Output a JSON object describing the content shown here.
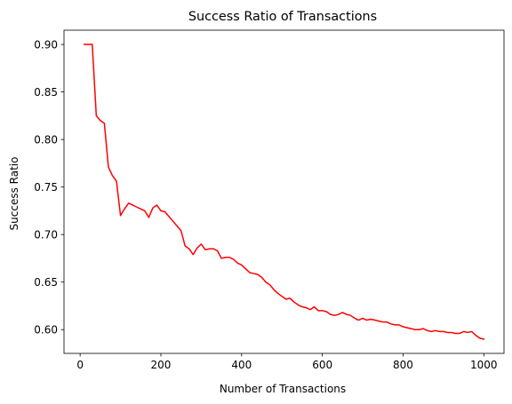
{
  "chart_data": {
    "type": "line",
    "title": "Success Ratio of Transactions",
    "xlabel": "Number of Transactions",
    "ylabel": "Success Ratio",
    "xlim": [
      -40,
      1050
    ],
    "ylim": [
      0.575,
      0.915
    ],
    "x_ticks": [
      0,
      200,
      400,
      600,
      800,
      1000
    ],
    "x_tick_labels": [
      "0",
      "200",
      "400",
      "600",
      "800",
      "1000"
    ],
    "y_ticks": [
      0.6,
      0.65,
      0.7,
      0.75,
      0.8,
      0.85,
      0.9
    ],
    "y_tick_labels": [
      "0.60",
      "0.65",
      "0.70",
      "0.75",
      "0.80",
      "0.85",
      "0.90"
    ],
    "grid": false,
    "series": [
      {
        "color": "#ff0000",
        "x": [
          10,
          20,
          30,
          40,
          50,
          60,
          70,
          80,
          90,
          100,
          110,
          120,
          130,
          140,
          150,
          160,
          170,
          180,
          190,
          200,
          210,
          220,
          230,
          240,
          250,
          260,
          270,
          280,
          290,
          300,
          310,
          320,
          330,
          340,
          350,
          360,
          370,
          380,
          390,
          400,
          410,
          420,
          430,
          440,
          450,
          460,
          470,
          480,
          490,
          500,
          510,
          520,
          530,
          540,
          550,
          560,
          570,
          580,
          590,
          600,
          610,
          620,
          630,
          640,
          650,
          660,
          670,
          680,
          690,
          700,
          710,
          720,
          730,
          740,
          750,
          760,
          770,
          780,
          790,
          800,
          810,
          820,
          830,
          840,
          850,
          860,
          870,
          880,
          890,
          900,
          910,
          920,
          930,
          940,
          950,
          960,
          970,
          980,
          990,
          1000
        ],
        "y": [
          0.9,
          0.9,
          0.9,
          0.825,
          0.82,
          0.817,
          0.771,
          0.762,
          0.756,
          0.72,
          0.727,
          0.733,
          0.731,
          0.729,
          0.727,
          0.725,
          0.718,
          0.728,
          0.731,
          0.725,
          0.724,
          0.719,
          0.714,
          0.709,
          0.704,
          0.688,
          0.685,
          0.679,
          0.686,
          0.69,
          0.684,
          0.685,
          0.685,
          0.683,
          0.675,
          0.676,
          0.676,
          0.674,
          0.67,
          0.668,
          0.664,
          0.66,
          0.659,
          0.658,
          0.655,
          0.65,
          0.647,
          0.642,
          0.638,
          0.635,
          0.632,
          0.633,
          0.629,
          0.626,
          0.624,
          0.623,
          0.621,
          0.624,
          0.62,
          0.62,
          0.619,
          0.616,
          0.615,
          0.616,
          0.618,
          0.616,
          0.615,
          0.612,
          0.61,
          0.612,
          0.61,
          0.611,
          0.61,
          0.609,
          0.608,
          0.608,
          0.606,
          0.605,
          0.605,
          0.603,
          0.602,
          0.601,
          0.6,
          0.6,
          0.601,
          0.599,
          0.598,
          0.599,
          0.598,
          0.598,
          0.597,
          0.597,
          0.596,
          0.596,
          0.598,
          0.597,
          0.598,
          0.594,
          0.591,
          0.59
        ]
      }
    ]
  }
}
